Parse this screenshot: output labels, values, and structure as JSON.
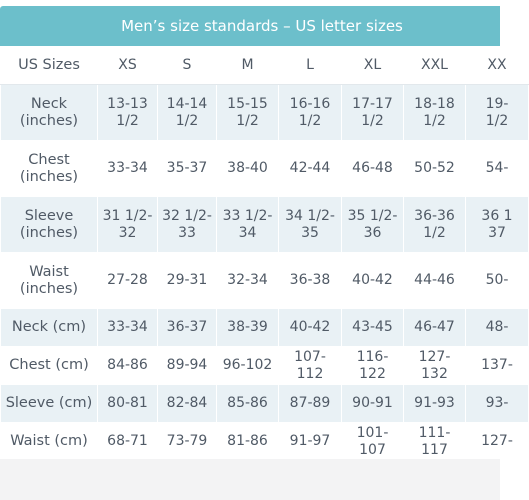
{
  "title": "Men’s size standards – US letter sizes",
  "header_label": "US Sizes",
  "sizes": [
    "XS",
    "S",
    "M",
    "L",
    "XL",
    "XXL",
    "XX"
  ],
  "rows": [
    {
      "label": "Neck\n(inches)",
      "values": [
        "13-13\n1/2",
        "14-14\n1/2",
        "15-15\n1/2",
        "16-16\n1/2",
        "17-17\n1/2",
        "18-18\n1/2",
        "19-\n1/2"
      ]
    },
    {
      "label": "Chest\n(inches)",
      "values": [
        "33-34",
        "35-37",
        "38-40",
        "42-44",
        "46-48",
        "50-52",
        "54-"
      ]
    },
    {
      "label": "Sleeve\n(inches)",
      "values": [
        "31 1/2-\n32",
        "32 1/2-\n33",
        "33 1/2-\n34",
        "34 1/2-\n35",
        "35 1/2-\n36",
        "36-36\n1/2",
        "36 1\n37"
      ]
    },
    {
      "label": "Waist\n(inches)",
      "values": [
        "27-28",
        "29-31",
        "32-34",
        "36-38",
        "40-42",
        "44-46",
        "50-"
      ]
    },
    {
      "label": "Neck (cm)",
      "values": [
        "33-34",
        "36-37",
        "38-39",
        "40-42",
        "43-45",
        "46-47",
        "48-"
      ]
    },
    {
      "label": "Chest (cm)",
      "values": [
        "84-86",
        "89-94",
        "96-102",
        "107-112",
        "116-122",
        "127-132",
        "137-"
      ]
    },
    {
      "label": "Sleeve (cm)",
      "values": [
        "80-81",
        "82-84",
        "85-86",
        "87-89",
        "90-91",
        "91-93",
        "93-"
      ]
    },
    {
      "label": "Waist (cm)",
      "values": [
        "68-71",
        "73-79",
        "81-86",
        "91-97",
        "101-107",
        "111-117",
        "127-"
      ]
    }
  ],
  "colors": {
    "header_bg": "#6cbfcb",
    "row_shade": "#e9f1f5",
    "text": "#505a66"
  }
}
